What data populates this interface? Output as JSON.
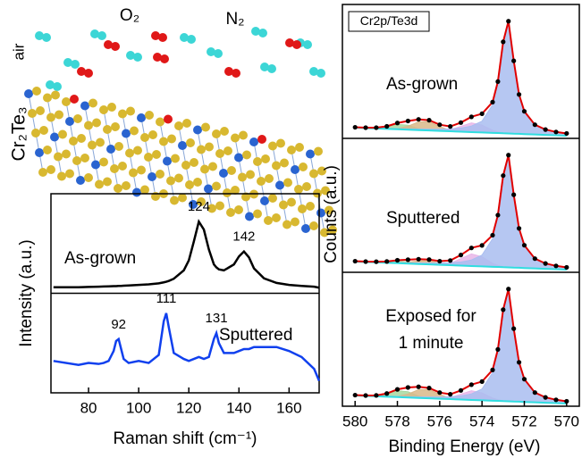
{
  "schematic": {
    "side_labels": [
      "air",
      "Cr₂Te₃"
    ],
    "gas_labels": [
      "O₂",
      "N₂"
    ]
  },
  "chart_data": [
    {
      "type": "line",
      "xlabel": "Raman shift (cm⁻¹)",
      "ylabel": "Intensity (a.u.)",
      "xlim": [
        65,
        172
      ],
      "ylim": [
        0,
        1
      ],
      "xticks": [
        80,
        100,
        120,
        140,
        160
      ],
      "x": [
        66,
        76,
        80,
        84,
        86,
        88,
        90,
        91,
        92,
        93,
        94,
        96,
        100,
        104,
        108,
        110,
        111,
        112,
        114,
        118,
        120,
        122,
        124,
        126,
        128,
        130,
        131,
        132,
        134,
        138,
        140,
        142,
        144,
        146,
        150,
        155,
        160,
        165,
        170,
        172
      ],
      "series": [
        {
          "name": "As-grown",
          "color": "#000000",
          "peaks": [
            124,
            142
          ],
          "values": [
            0.53,
            0.53,
            0.532,
            0.533,
            0.534,
            0.535,
            0.536,
            0.536,
            0.537,
            0.537,
            0.538,
            0.539,
            0.542,
            0.545,
            0.55,
            0.555,
            0.558,
            0.562,
            0.573,
            0.615,
            0.665,
            0.76,
            0.86,
            0.82,
            0.72,
            0.645,
            0.63,
            0.62,
            0.615,
            0.645,
            0.685,
            0.71,
            0.68,
            0.625,
            0.575,
            0.552,
            0.542,
            0.537,
            0.533,
            0.528
          ]
        },
        {
          "name": "Sputtered",
          "color": "#1040ee",
          "peaks": [
            92,
            111,
            131
          ],
          "values": [
            0.16,
            0.14,
            0.15,
            0.145,
            0.15,
            0.16,
            0.21,
            0.26,
            0.27,
            0.22,
            0.17,
            0.15,
            0.16,
            0.15,
            0.19,
            0.36,
            0.4,
            0.33,
            0.2,
            0.17,
            0.16,
            0.17,
            0.18,
            0.17,
            0.18,
            0.27,
            0.3,
            0.25,
            0.2,
            0.2,
            0.21,
            0.22,
            0.22,
            0.23,
            0.23,
            0.23,
            0.21,
            0.18,
            0.12,
            0.06
          ]
        }
      ]
    },
    {
      "type": "xps",
      "title": "Cr2p/Te3d",
      "xlabel": "Binding Energy (eV)",
      "ylabel": "Counts (a.u.)",
      "xlim": [
        580.6,
        569.4
      ],
      "ylim": [
        0,
        1
      ],
      "xticks": [
        580,
        578,
        576,
        574,
        572,
        570
      ],
      "x": [
        580,
        579.5,
        579,
        578.5,
        578,
        577.5,
        577,
        576.5,
        576,
        575.5,
        575,
        574.5,
        574,
        573.5,
        573.25,
        573,
        572.75,
        572.5,
        572.25,
        572,
        571.5,
        571,
        570.5,
        570
      ],
      "panels": [
        {
          "label_lines": [
            "As-grown"
          ],
          "background": {
            "color": "#30dde0",
            "values": [
              0.08,
              0.077,
              0.074,
              0.071,
              0.068,
              0.065,
              0.062,
              0.059,
              0.056,
              0.053,
              0.05,
              0.047,
              0.044,
              0.041,
              0.04,
              0.038,
              0.037,
              0.035,
              0.034,
              0.032,
              0.029,
              0.026,
              0.023,
              0.02
            ]
          },
          "components": [
            {
              "color": "#a8d8a0",
              "values": [
                0,
                0,
                0.002,
                0.015,
                0.037,
                0.033,
                0.011,
                0.001,
                0,
                0,
                0,
                0,
                0,
                0,
                0,
                0,
                0,
                0,
                0,
                0,
                0,
                0,
                0,
                0
              ]
            },
            {
              "color": "#d9b98a",
              "values": [
                0,
                0,
                0,
                0,
                0.005,
                0.026,
                0.061,
                0.066,
                0.032,
                0.007,
                0.001,
                0,
                0,
                0,
                0,
                0,
                0,
                0,
                0,
                0,
                0,
                0,
                0,
                0
              ]
            },
            {
              "color": "#e8b6e8",
              "values": [
                0,
                0,
                0,
                0,
                0,
                0,
                0,
                0,
                0.001,
                0.011,
                0.04,
                0.069,
                0.055,
                0.02,
                0.009,
                0.003,
                0.001,
                0,
                0,
                0,
                0,
                0,
                0,
                0
              ]
            },
            {
              "color": "#a9bdf0",
              "values": [
                0.003,
                0.003,
                0.004,
                0.004,
                0.005,
                0.006,
                0.008,
                0.01,
                0.013,
                0.018,
                0.027,
                0.045,
                0.085,
                0.21,
                0.375,
                0.68,
                0.837,
                0.544,
                0.294,
                0.17,
                0.073,
                0.04,
                0.025,
                0.017
              ]
            }
          ],
          "data": {
            "color": "#000000",
            "fit_color": "#e00000",
            "values": [
              0.083,
              0.08,
              0.08,
              0.09,
              0.115,
              0.13,
              0.142,
              0.136,
              0.102,
              0.089,
              0.118,
              0.161,
              0.184,
              0.271,
              0.424,
              0.721,
              0.875,
              0.579,
              0.328,
              0.202,
              0.102,
              0.066,
              0.048,
              0.037
            ]
          }
        },
        {
          "label_lines": [
            "Sputtered"
          ],
          "background": {
            "color": "#30dde0",
            "values": [
              0.08,
              0.077,
              0.074,
              0.071,
              0.068,
              0.065,
              0.062,
              0.059,
              0.056,
              0.053,
              0.05,
              0.047,
              0.044,
              0.041,
              0.04,
              0.038,
              0.037,
              0.035,
              0.034,
              0.032,
              0.029,
              0.026,
              0.023,
              0.02
            ]
          },
          "components": [
            {
              "color": "#a8d8a0",
              "values": [
                0,
                0,
                0.001,
                0.006,
                0.015,
                0.013,
                0.004,
                0,
                0,
                0,
                0,
                0,
                0,
                0,
                0,
                0,
                0,
                0,
                0,
                0,
                0,
                0,
                0,
                0
              ]
            },
            {
              "color": "#d9b98a",
              "values": [
                0,
                0,
                0,
                0,
                0.002,
                0.01,
                0.024,
                0.026,
                0.013,
                0.003,
                0,
                0,
                0,
                0,
                0,
                0,
                0,
                0,
                0,
                0,
                0,
                0,
                0,
                0
              ]
            },
            {
              "color": "#e8b6e8",
              "values": [
                0,
                0,
                0,
                0,
                0,
                0,
                0,
                0,
                0.001,
                0.014,
                0.052,
                0.09,
                0.072,
                0.026,
                0.012,
                0.004,
                0.001,
                0,
                0,
                0,
                0,
                0,
                0,
                0
              ]
            },
            {
              "color": "#a9bdf0",
              "values": [
                0.003,
                0.003,
                0.004,
                0.004,
                0.005,
                0.006,
                0.008,
                0.01,
                0.013,
                0.018,
                0.027,
                0.045,
                0.085,
                0.21,
                0.375,
                0.68,
                0.837,
                0.544,
                0.294,
                0.17,
                0.073,
                0.04,
                0.025,
                0.017
              ]
            }
          ],
          "data": {
            "color": "#000000",
            "fit_color": "#e00000",
            "values": [
              0.083,
              0.08,
              0.079,
              0.081,
              0.09,
              0.094,
              0.098,
              0.095,
              0.083,
              0.088,
              0.129,
              0.182,
              0.201,
              0.277,
              0.427,
              0.722,
              0.875,
              0.579,
              0.328,
              0.202,
              0.102,
              0.066,
              0.048,
              0.037
            ]
          }
        },
        {
          "label_lines": [
            "Exposed for",
            "1 minute"
          ],
          "background": {
            "color": "#30dde0",
            "values": [
              0.08,
              0.077,
              0.074,
              0.071,
              0.068,
              0.065,
              0.062,
              0.059,
              0.056,
              0.053,
              0.05,
              0.047,
              0.044,
              0.041,
              0.04,
              0.038,
              0.037,
              0.035,
              0.034,
              0.032,
              0.029,
              0.026,
              0.023,
              0.02
            ]
          },
          "components": [
            {
              "color": "#a8d8a0",
              "values": [
                0,
                0,
                0.003,
                0.02,
                0.048,
                0.043,
                0.014,
                0.001,
                0,
                0,
                0,
                0,
                0,
                0,
                0,
                0,
                0,
                0,
                0,
                0,
                0,
                0,
                0,
                0
              ]
            },
            {
              "color": "#d9b98a",
              "values": [
                0,
                0,
                0,
                0,
                0.005,
                0.026,
                0.061,
                0.066,
                0.032,
                0.007,
                0.001,
                0,
                0,
                0,
                0,
                0,
                0,
                0,
                0,
                0,
                0,
                0,
                0,
                0
              ]
            },
            {
              "color": "#e8b6e8",
              "values": [
                0,
                0,
                0,
                0,
                0,
                0,
                0,
                0,
                0.001,
                0.011,
                0.04,
                0.069,
                0.055,
                0.02,
                0.009,
                0.003,
                0.001,
                0,
                0,
                0,
                0,
                0,
                0,
                0
              ]
            },
            {
              "color": "#a9bdf0",
              "values": [
                0.003,
                0.003,
                0.004,
                0.004,
                0.005,
                0.006,
                0.008,
                0.01,
                0.013,
                0.018,
                0.027,
                0.045,
                0.085,
                0.21,
                0.375,
                0.68,
                0.837,
                0.544,
                0.294,
                0.17,
                0.073,
                0.04,
                0.025,
                0.017
              ]
            }
          ],
          "data": {
            "color": "#000000",
            "fit_color": "#e00000",
            "values": [
              0.083,
              0.08,
              0.081,
              0.095,
              0.126,
              0.14,
              0.145,
              0.136,
              0.102,
              0.089,
              0.118,
              0.161,
              0.184,
              0.271,
              0.424,
              0.721,
              0.875,
              0.579,
              0.328,
              0.202,
              0.102,
              0.066,
              0.048,
              0.037
            ]
          }
        }
      ]
    }
  ]
}
